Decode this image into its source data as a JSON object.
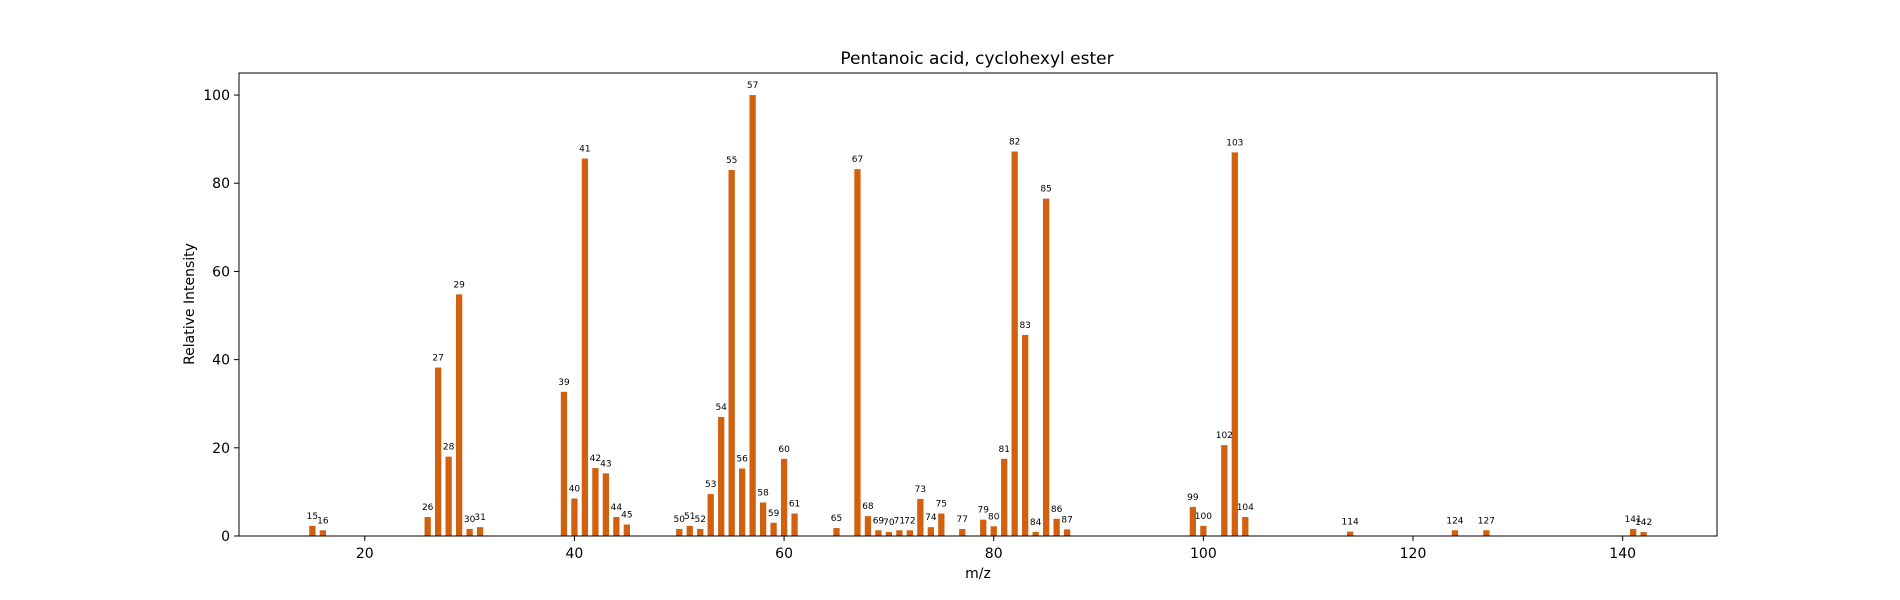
{
  "chart_data": {
    "type": "bar",
    "title": "Pentanoic acid, cyclohexyl ester",
    "xlabel": "m/z",
    "ylabel": "Relative Intensity",
    "xlim": [
      8,
      149
    ],
    "ylim": [
      0,
      105
    ],
    "xticks": [
      20,
      40,
      60,
      80,
      100,
      120,
      140
    ],
    "yticks": [
      0,
      20,
      40,
      60,
      80,
      100
    ],
    "grid": false,
    "bar_color": "#d2610f",
    "peaks": [
      {
        "x": 15,
        "y": 2.3
      },
      {
        "x": 16,
        "y": 1.3
      },
      {
        "x": 26,
        "y": 4.3
      },
      {
        "x": 27,
        "y": 38.2
      },
      {
        "x": 28,
        "y": 18.0
      },
      {
        "x": 29,
        "y": 54.8
      },
      {
        "x": 30,
        "y": 1.6
      },
      {
        "x": 31,
        "y": 2.0
      },
      {
        "x": 39,
        "y": 32.7
      },
      {
        "x": 40,
        "y": 8.5
      },
      {
        "x": 41,
        "y": 85.6
      },
      {
        "x": 42,
        "y": 15.4
      },
      {
        "x": 43,
        "y": 14.2
      },
      {
        "x": 44,
        "y": 4.3
      },
      {
        "x": 45,
        "y": 2.6
      },
      {
        "x": 50,
        "y": 1.6
      },
      {
        "x": 51,
        "y": 2.3
      },
      {
        "x": 52,
        "y": 1.6
      },
      {
        "x": 53,
        "y": 9.5
      },
      {
        "x": 54,
        "y": 27.0
      },
      {
        "x": 55,
        "y": 83.0
      },
      {
        "x": 56,
        "y": 15.3
      },
      {
        "x": 57,
        "y": 100.0
      },
      {
        "x": 58,
        "y": 7.6
      },
      {
        "x": 59,
        "y": 3.0
      },
      {
        "x": 60,
        "y": 17.5
      },
      {
        "x": 61,
        "y": 5.1
      },
      {
        "x": 65,
        "y": 1.8
      },
      {
        "x": 67,
        "y": 83.2
      },
      {
        "x": 68,
        "y": 4.5
      },
      {
        "x": 69,
        "y": 1.3
      },
      {
        "x": 70,
        "y": 0.9
      },
      {
        "x": 71,
        "y": 1.3
      },
      {
        "x": 72,
        "y": 1.3
      },
      {
        "x": 73,
        "y": 8.4
      },
      {
        "x": 74,
        "y": 2.0
      },
      {
        "x": 75,
        "y": 5.1
      },
      {
        "x": 77,
        "y": 1.6
      },
      {
        "x": 79,
        "y": 3.7
      },
      {
        "x": 80,
        "y": 2.2
      },
      {
        "x": 81,
        "y": 17.5
      },
      {
        "x": 82,
        "y": 87.2
      },
      {
        "x": 83,
        "y": 45.6
      },
      {
        "x": 84,
        "y": 0.9
      },
      {
        "x": 85,
        "y": 76.5
      },
      {
        "x": 86,
        "y": 3.9
      },
      {
        "x": 87,
        "y": 1.5
      },
      {
        "x": 99,
        "y": 6.6
      },
      {
        "x": 100,
        "y": 2.3
      },
      {
        "x": 102,
        "y": 20.6
      },
      {
        "x": 103,
        "y": 87.0
      },
      {
        "x": 104,
        "y": 4.3
      },
      {
        "x": 114,
        "y": 1.0
      },
      {
        "x": 124,
        "y": 1.3
      },
      {
        "x": 127,
        "y": 1.3
      },
      {
        "x": 141,
        "y": 1.6
      },
      {
        "x": 142,
        "y": 0.9
      }
    ]
  }
}
